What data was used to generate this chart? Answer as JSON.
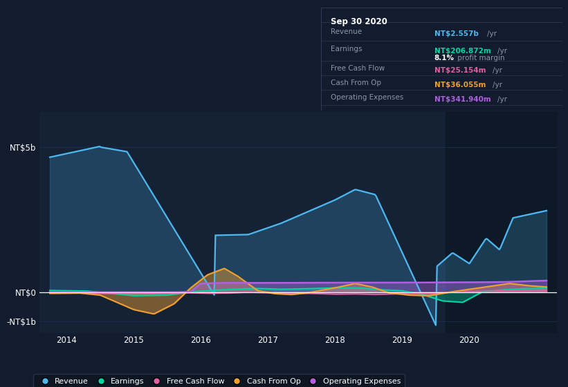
{
  "bg_color": "#131c2e",
  "plot_bg_color": "#152236",
  "highlight_bg": "#0d1826",
  "grid_color": "#1e3050",
  "zero_line_color": "#ffffff",
  "revenue_color": "#4db8f0",
  "earnings_color": "#00d4a0",
  "fcf_color": "#e060a0",
  "cashfromop_color": "#f0a030",
  "opex_color": "#b060e0",
  "text_color": "#ffffff",
  "label_color": "#8899aa",
  "table_bg": "#080e18",
  "table_border": "#2a3a55",
  "title_text": "Sep 30 2020",
  "rows": [
    {
      "label": "Revenue",
      "value": "NT$2.557b",
      "unit": "/yr",
      "color": "#4db8f0",
      "sub": null
    },
    {
      "label": "Earnings",
      "value": "NT$206.872m",
      "unit": "/yr",
      "color": "#00d4a0",
      "sub": "8.1% profit margin"
    },
    {
      "label": "Free Cash Flow",
      "value": "NT$25.154m",
      "unit": "/yr",
      "color": "#e060a0",
      "sub": null
    },
    {
      "label": "Cash From Op",
      "value": "NT$36.055m",
      "unit": "/yr",
      "color": "#f0a030",
      "sub": null
    },
    {
      "label": "Operating Expenses",
      "value": "NT$341.940m",
      "unit": "/yr",
      "color": "#b060e0",
      "sub": null
    }
  ],
  "legend": [
    {
      "label": "Revenue",
      "color": "#4db8f0"
    },
    {
      "label": "Earnings",
      "color": "#00d4a0"
    },
    {
      "label": "Free Cash Flow",
      "color": "#e060a0"
    },
    {
      "label": "Cash From Op",
      "color": "#f0a030"
    },
    {
      "label": "Operating Expenses",
      "color": "#b060e0"
    }
  ],
  "ytick_vals": [
    5000000000,
    0,
    -1000000000
  ],
  "ytick_labels": [
    "NT$5b",
    "NT$0",
    "-NT$1b"
  ],
  "xtick_vals": [
    2014,
    2015,
    2016,
    2017,
    2018,
    2019,
    2020
  ],
  "xmin": 2013.6,
  "xmax": 2021.3,
  "ymin": -1400000000,
  "ymax": 6200000000,
  "highlight_start": 2019.65
}
